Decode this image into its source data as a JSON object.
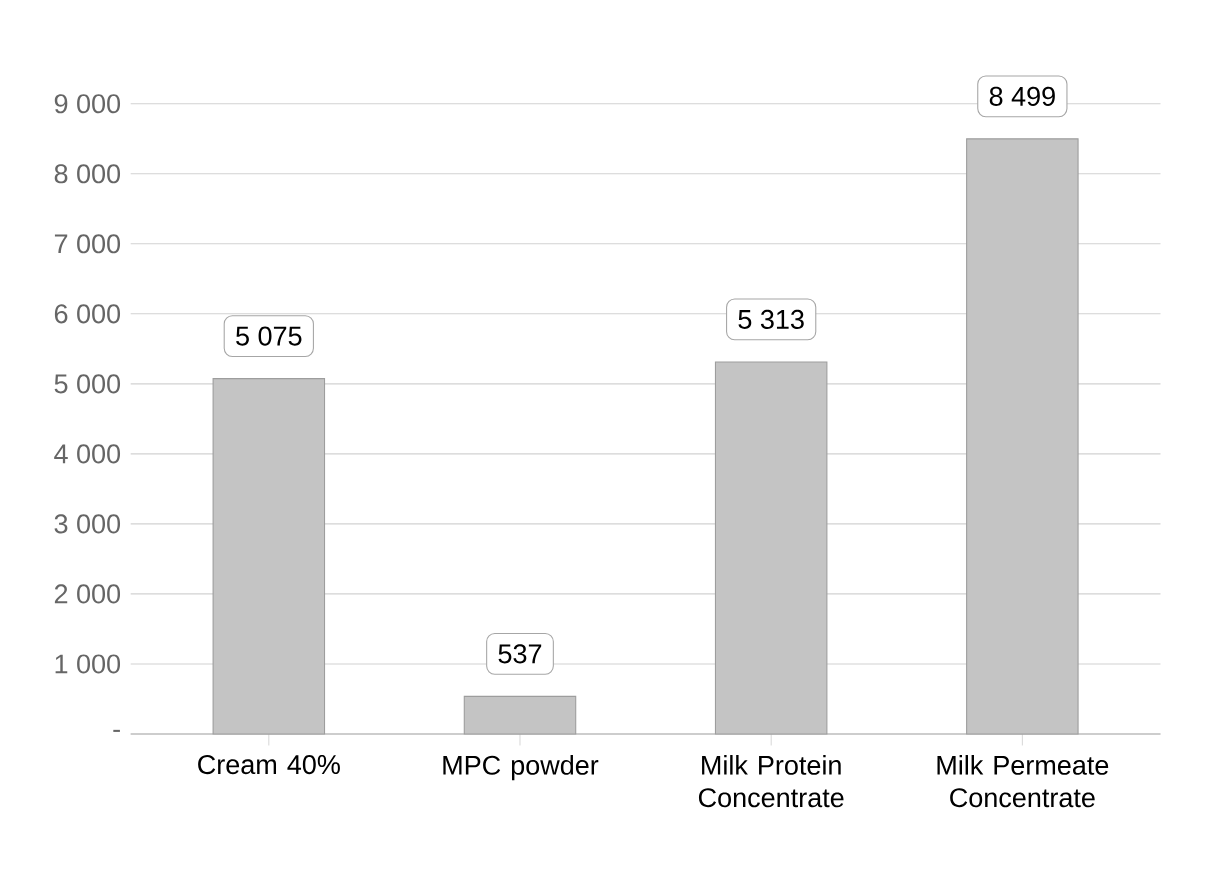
{
  "chart_data": {
    "type": "bar",
    "categories": [
      "Cream 40%",
      "MPC powder",
      "Milk Protein Concentrate",
      "Milk Permeate Concentrate"
    ],
    "values": [
      5075,
      537,
      5313,
      8499
    ],
    "value_labels": [
      "5 075",
      "537",
      "5 313",
      "8 499"
    ],
    "color": "#c4c4c4",
    "ylim": [
      0,
      9000
    ],
    "yticks": [
      {
        "value": 0,
        "label": "-"
      },
      {
        "value": 1000,
        "label": "1 000"
      },
      {
        "value": 2000,
        "label": "2 000"
      },
      {
        "value": 3000,
        "label": "3 000"
      },
      {
        "value": 4000,
        "label": "4 000"
      },
      {
        "value": 5000,
        "label": "5 000"
      },
      {
        "value": 6000,
        "label": "6 000"
      },
      {
        "value": 7000,
        "label": "7 000"
      },
      {
        "value": 8000,
        "label": "8 000"
      },
      {
        "value": 9000,
        "label": "9 000"
      }
    ],
    "grid": "y"
  }
}
